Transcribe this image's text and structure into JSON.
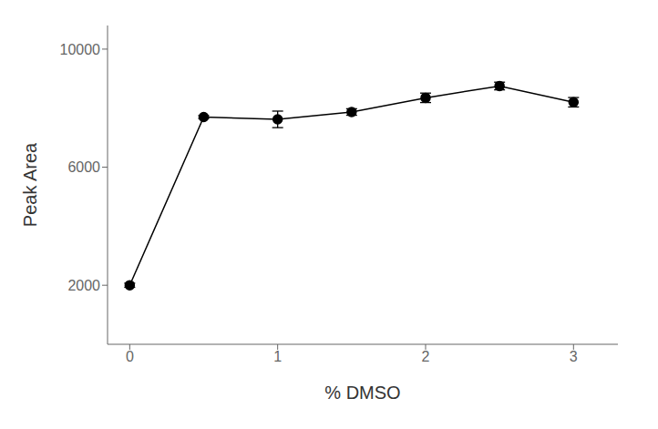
{
  "chart_data": {
    "type": "line",
    "x": [
      0,
      0.5,
      1,
      1.5,
      2,
      2.5,
      3
    ],
    "values": [
      2000,
      7700,
      7620,
      7870,
      8350,
      8750,
      8200
    ],
    "errors": [
      70,
      50,
      280,
      110,
      160,
      130,
      160
    ],
    "xlabel": "% DMSO",
    "ylabel": "Peak Area",
    "xlim": [
      -0.15,
      3.3
    ],
    "ylim": [
      0,
      10800
    ],
    "xticks": [
      0,
      1,
      2,
      3
    ],
    "yticks": [
      2000,
      6000,
      10000
    ],
    "color": "#000000",
    "marker": "circle",
    "grid": false
  }
}
